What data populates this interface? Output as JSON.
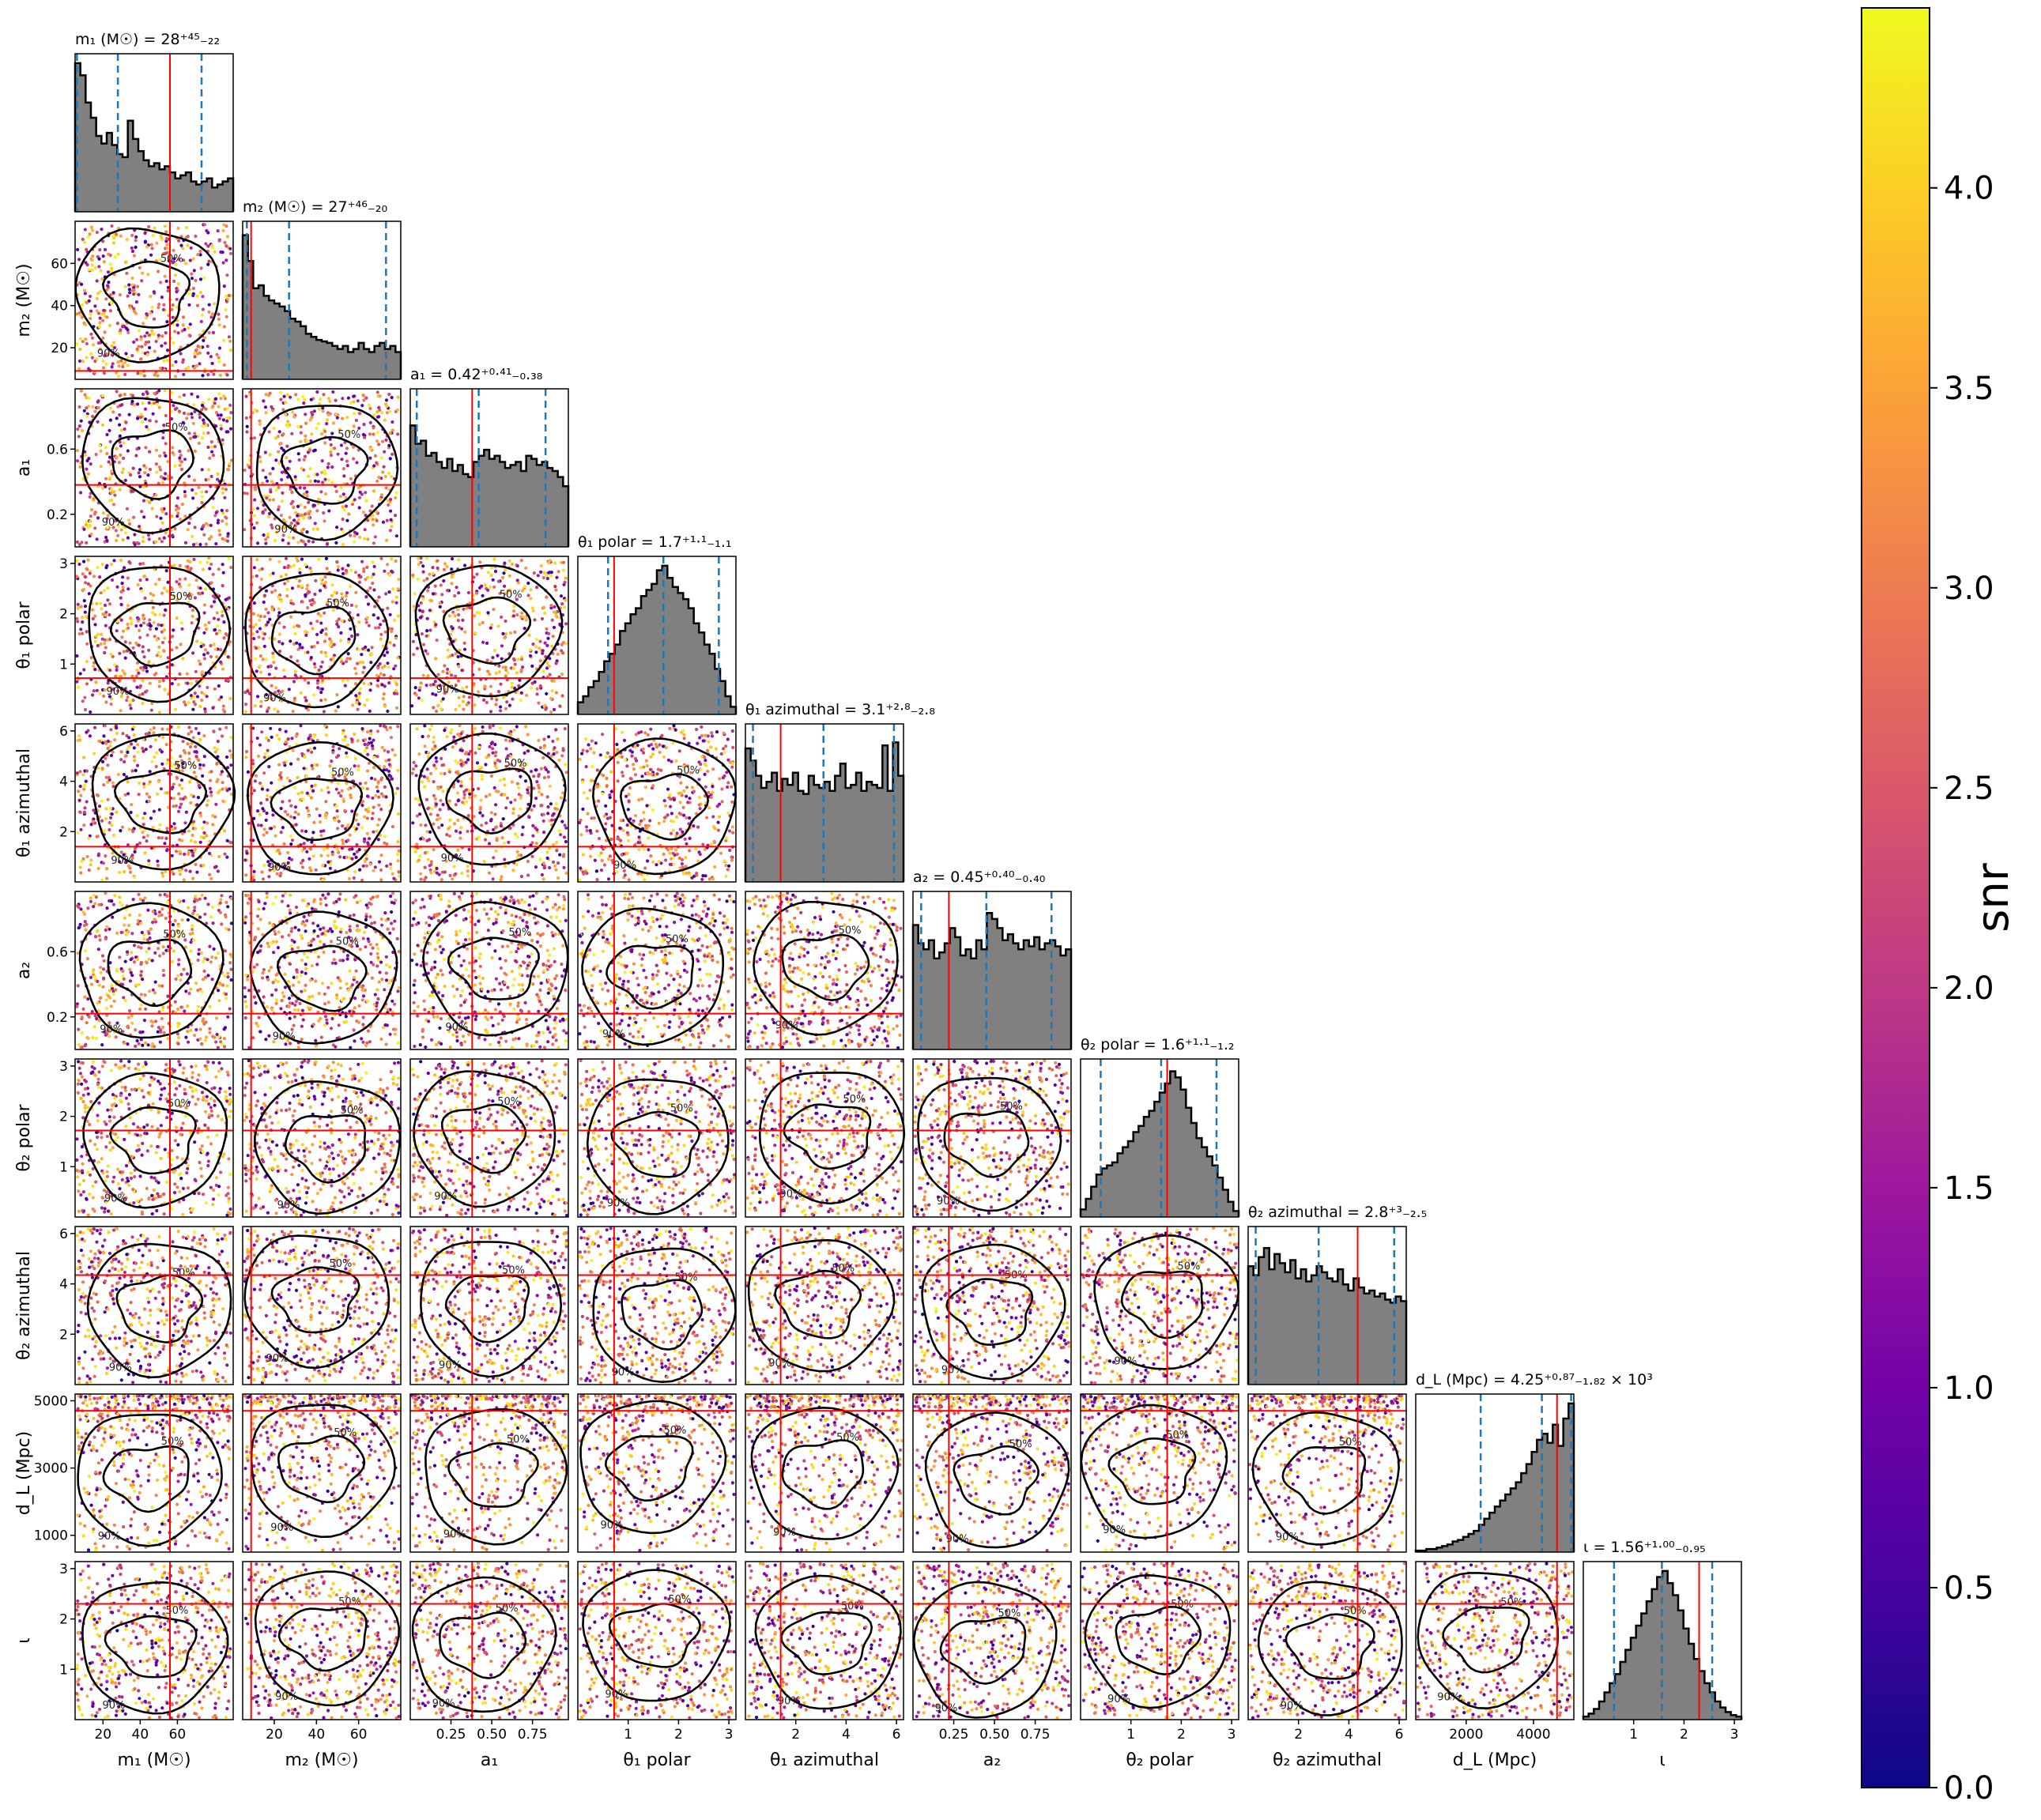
{
  "chart_data": {
    "type": "scatter",
    "kind": "corner_plot",
    "parameters": [
      {
        "id": "m1",
        "label": "m₁ (M☉)",
        "title": "m₁ (M☉) = 28⁺⁴⁵₋₂₂",
        "range": [
          5,
          90
        ],
        "ticks": [
          20,
          40,
          60
        ],
        "ticklabels": [
          "20",
          "40",
          "60"
        ],
        "median": 28,
        "lo": 6,
        "hi": 73,
        "injected": 56
      },
      {
        "id": "m2",
        "label": "m₂ (M☉)",
        "title": "m₂ (M☉) = 27⁺⁴⁶₋₂₀",
        "range": [
          5,
          80
        ],
        "ticks": [
          20,
          40,
          60
        ],
        "ticklabels": [
          "20",
          "40",
          "60"
        ],
        "median": 27,
        "lo": 7,
        "hi": 73,
        "injected": 9
      },
      {
        "id": "a1",
        "label": "a₁",
        "title": "a₁ = 0.42⁺⁰·⁴¹₋₀.₃₈",
        "range": [
          0,
          0.97
        ],
        "ticks": [
          0.25,
          0.5,
          0.75
        ],
        "ticklabels": [
          "0.25",
          "0.50",
          "0.75"
        ],
        "yticks": [
          0.2,
          0.6
        ],
        "yticklabels": [
          "0.2",
          "0.6"
        ],
        "median": 0.42,
        "lo": 0.04,
        "hi": 0.83,
        "injected": 0.38
      },
      {
        "id": "theta1_polar",
        "label": "θ₁ polar",
        "title": "θ₁ polar = 1.7⁺¹·¹₋₁.₁",
        "range": [
          0,
          3.14
        ],
        "ticks": [
          1,
          2,
          3
        ],
        "ticklabels": [
          "1",
          "2",
          "3"
        ],
        "median": 1.7,
        "lo": 0.6,
        "hi": 2.8,
        "injected": 0.72
      },
      {
        "id": "theta1_azimuthal",
        "label": "θ₁ azimuthal",
        "title": "θ₁ azimuthal = 3.1⁺²·⁸₋₂.₈",
        "range": [
          0,
          6.28
        ],
        "ticks": [
          2,
          4,
          6
        ],
        "ticklabels": [
          "2",
          "4",
          "6"
        ],
        "median": 3.1,
        "lo": 0.3,
        "hi": 5.9,
        "injected": 1.4
      },
      {
        "id": "a2",
        "label": "a₂",
        "title": "a₂ = 0.45⁺⁰·⁴⁰₋₀.₄₀",
        "range": [
          0,
          0.97
        ],
        "ticks": [
          0.25,
          0.5,
          0.75
        ],
        "ticklabels": [
          "0.25",
          "0.50",
          "0.75"
        ],
        "yticks": [
          0.2,
          0.6
        ],
        "yticklabels": [
          "0.2",
          "0.6"
        ],
        "median": 0.45,
        "lo": 0.05,
        "hi": 0.85,
        "injected": 0.22
      },
      {
        "id": "theta2_polar",
        "label": "θ₂ polar",
        "title": "θ₂ polar = 1.6⁺¹·¹₋₁.₂",
        "range": [
          0,
          3.14
        ],
        "ticks": [
          1,
          2,
          3
        ],
        "ticklabels": [
          "1",
          "2",
          "3"
        ],
        "median": 1.6,
        "lo": 0.4,
        "hi": 2.7,
        "injected": 1.72
      },
      {
        "id": "theta2_azimuthal",
        "label": "θ₂ azimuthal",
        "title": "θ₂ azimuthal = 2.8⁺³₋₂.₅",
        "range": [
          0,
          6.28
        ],
        "ticks": [
          2,
          4,
          6
        ],
        "ticklabels": [
          "2",
          "4",
          "6"
        ],
        "median": 2.8,
        "lo": 0.3,
        "hi": 5.8,
        "injected": 4.35
      },
      {
        "id": "dL",
        "label": "d_L (Mpc)",
        "title": "d_L (Mpc) = 4.25⁺⁰·⁸⁷₋₁.₈₂ × 10³",
        "range": [
          500,
          5200
        ],
        "ticks": [
          2000,
          4000
        ],
        "ticklabels": [
          "2000",
          "4000"
        ],
        "yticks": [
          1000,
          3000,
          5000
        ],
        "yticklabels": [
          "1000",
          "3000",
          "5000"
        ],
        "median": 4250,
        "lo": 2430,
        "hi": 5120,
        "injected": 4700
      },
      {
        "id": "iota",
        "label": "ι",
        "title": "ι = 1.56⁺¹·⁰⁰₋₀.₉₅",
        "range": [
          0,
          3.14
        ],
        "ticks": [
          1,
          2,
          3
        ],
        "ticklabels": [
          "1",
          "2",
          "3"
        ],
        "median": 1.56,
        "lo": 0.61,
        "hi": 2.56,
        "injected": 2.3
      }
    ],
    "histograms": [
      [
        0.98,
        0.9,
        0.72,
        0.62,
        0.5,
        0.45,
        0.52,
        0.44,
        0.38,
        0.36,
        0.6,
        0.48,
        0.4,
        0.34,
        0.3,
        0.32,
        0.28,
        0.3,
        0.26,
        0.22,
        0.24,
        0.26,
        0.2,
        0.18,
        0.2,
        0.22,
        0.16,
        0.18,
        0.2,
        0.22
      ],
      [
        0.95,
        0.78,
        0.6,
        0.62,
        0.55,
        0.52,
        0.5,
        0.48,
        0.45,
        0.4,
        0.38,
        0.35,
        0.3,
        0.28,
        0.26,
        0.25,
        0.24,
        0.22,
        0.2,
        0.22,
        0.18,
        0.2,
        0.24,
        0.2,
        0.18,
        0.22,
        0.24,
        0.2,
        0.22,
        0.18
      ],
      [
        0.8,
        0.68,
        0.7,
        0.6,
        0.62,
        0.56,
        0.52,
        0.58,
        0.5,
        0.54,
        0.48,
        0.46,
        0.56,
        0.6,
        0.64,
        0.58,
        0.6,
        0.56,
        0.52,
        0.54,
        0.56,
        0.5,
        0.6,
        0.58,
        0.54,
        0.56,
        0.52,
        0.5,
        0.46,
        0.4
      ],
      [
        0.08,
        0.12,
        0.18,
        0.22,
        0.28,
        0.35,
        0.4,
        0.46,
        0.55,
        0.6,
        0.66,
        0.7,
        0.78,
        0.82,
        0.86,
        0.95,
        0.98,
        0.9,
        0.84,
        0.8,
        0.76,
        0.7,
        0.6,
        0.54,
        0.46,
        0.4,
        0.3,
        0.22,
        0.12,
        0.05
      ],
      [
        0.88,
        0.8,
        0.7,
        0.62,
        0.66,
        0.72,
        0.6,
        0.68,
        0.64,
        0.72,
        0.6,
        0.58,
        0.7,
        0.64,
        0.62,
        0.66,
        0.6,
        0.7,
        0.78,
        0.62,
        0.64,
        0.72,
        0.6,
        0.66,
        0.64,
        0.62,
        0.9,
        0.6,
        0.92,
        0.7
      ],
      [
        0.82,
        0.7,
        0.66,
        0.72,
        0.6,
        0.64,
        0.7,
        0.8,
        0.74,
        0.62,
        0.66,
        0.6,
        0.72,
        0.66,
        0.9,
        0.86,
        0.8,
        0.72,
        0.76,
        0.7,
        0.66,
        0.72,
        0.68,
        0.74,
        0.66,
        0.7,
        0.72,
        0.68,
        0.62,
        0.66
      ],
      [
        0.05,
        0.12,
        0.2,
        0.28,
        0.32,
        0.34,
        0.36,
        0.42,
        0.46,
        0.5,
        0.56,
        0.6,
        0.66,
        0.7,
        0.76,
        0.82,
        0.88,
        0.96,
        0.92,
        0.84,
        0.72,
        0.62,
        0.52,
        0.46,
        0.4,
        0.34,
        0.26,
        0.18,
        0.1,
        0.04
      ],
      [
        0.78,
        0.72,
        0.84,
        0.9,
        0.76,
        0.86,
        0.8,
        0.74,
        0.82,
        0.7,
        0.76,
        0.68,
        0.72,
        0.78,
        0.74,
        0.7,
        0.68,
        0.76,
        0.66,
        0.62,
        0.7,
        0.64,
        0.6,
        0.62,
        0.58,
        0.6,
        0.56,
        0.54,
        0.58,
        0.55
      ],
      [
        0.01,
        0.01,
        0.02,
        0.02,
        0.03,
        0.04,
        0.05,
        0.07,
        0.08,
        0.1,
        0.12,
        0.14,
        0.18,
        0.22,
        0.26,
        0.3,
        0.34,
        0.38,
        0.42,
        0.46,
        0.52,
        0.58,
        0.66,
        0.74,
        0.78,
        0.72,
        0.84,
        0.7,
        0.88,
        0.98
      ],
      [
        0.02,
        0.04,
        0.07,
        0.12,
        0.18,
        0.24,
        0.3,
        0.38,
        0.46,
        0.54,
        0.62,
        0.7,
        0.78,
        0.86,
        0.94,
        0.98,
        0.9,
        0.82,
        0.72,
        0.6,
        0.5,
        0.4,
        0.32,
        0.24,
        0.18,
        0.12,
        0.08,
        0.05,
        0.03,
        0.02
      ]
    ],
    "contour_levels": [
      "50%",
      "90%"
    ],
    "colorbar": {
      "label": "snr",
      "range": [
        0.0,
        4.45
      ],
      "ticks": [
        0.0,
        0.5,
        1.0,
        1.5,
        2.0,
        2.5,
        3.0,
        3.5,
        4.0
      ],
      "ticklabels": [
        "0.0",
        "0.5",
        "1.0",
        "1.5",
        "2.0",
        "2.5",
        "3.0",
        "3.5",
        "4.0"
      ],
      "colormap": "plasma",
      "colormap_stops": [
        "#0d0887",
        "#46039f",
        "#7201a8",
        "#9c179e",
        "#bd3786",
        "#d8576b",
        "#ed7953",
        "#fb9f3a",
        "#fdca26",
        "#f0f921"
      ]
    },
    "colors": {
      "histogram_fill": "#808080",
      "histogram_edge": "#000000",
      "quantile_lines": "#1f77b4",
      "truth_lines": "#ff0000",
      "contours": "#000000"
    },
    "grid": false,
    "legend": "none"
  }
}
